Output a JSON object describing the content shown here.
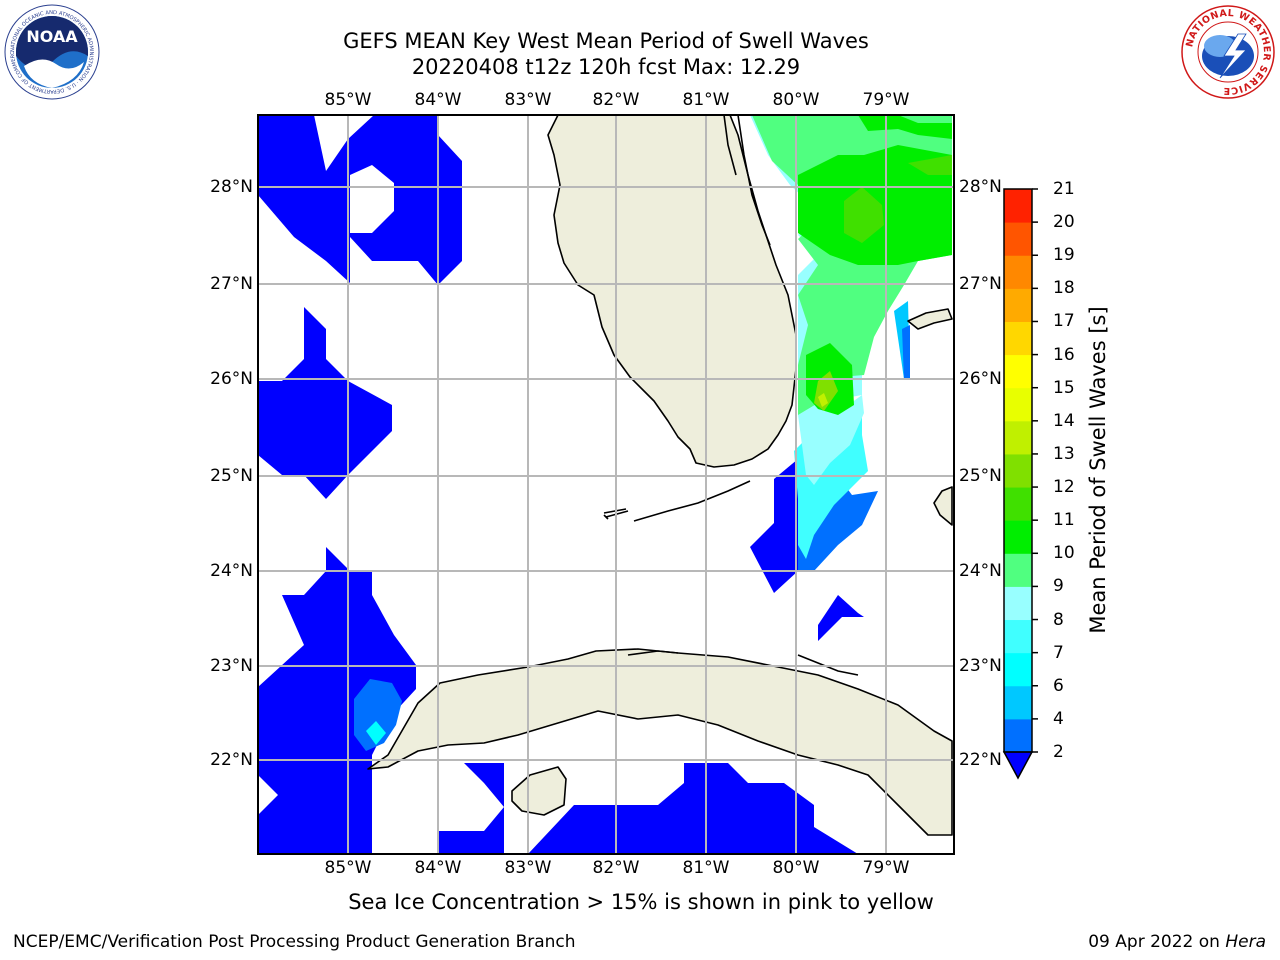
{
  "title_line1": "GEFS MEAN Key West Mean Period of Swell Waves",
  "title_line2": "20220408 t12z 120h fcst   Max: 12.29",
  "lon_labels": [
    "85°W",
    "84°W",
    "83°W",
    "82°W",
    "81°W",
    "80°W",
    "79°W"
  ],
  "lat_labels": [
    "28°N",
    "27°N",
    "26°N",
    "25°N",
    "24°N",
    "23°N",
    "22°N"
  ],
  "colorbar": {
    "label": "Mean Period of Swell Waves [s]",
    "ticks": [
      "2",
      "4",
      "6",
      "7",
      "8",
      "9",
      "10",
      "11",
      "12",
      "13",
      "14",
      "15",
      "16",
      "17",
      "18",
      "19",
      "20",
      "21"
    ],
    "colors": [
      "#0070ff",
      "#00c8ff",
      "#00ffff",
      "#40ffff",
      "#98ffff",
      "#50ff80",
      "#00ee00",
      "#40e000",
      "#80e000",
      "#c0f000",
      "#e8ff00",
      "#ffff00",
      "#ffd700",
      "#ffaa00",
      "#ff8800",
      "#ff5500",
      "#ff2200",
      "#ff0000"
    ],
    "under_color": "#0000ff"
  },
  "colors": {
    "land": "#eeeedc",
    "under": "#0000ff",
    "grid": "#b8b8b8"
  },
  "sea_ice_note": "Sea Ice Concentration > 15% is shown in pink to yellow",
  "footer_left": "NCEP/EMC/Verification Post Processing Product Generation Branch",
  "footer_right_date": "09 Apr 2022 on ",
  "footer_right_host": "Hera",
  "logos": {
    "left": "NOAA",
    "right": "NATIONAL WEATHER SERVICE",
    "left_ring": "NATIONAL OCEANIC AND ATMOSPHERIC ADMINISTRATION · U.S. DEPARTMENT OF COMMERCE"
  }
}
